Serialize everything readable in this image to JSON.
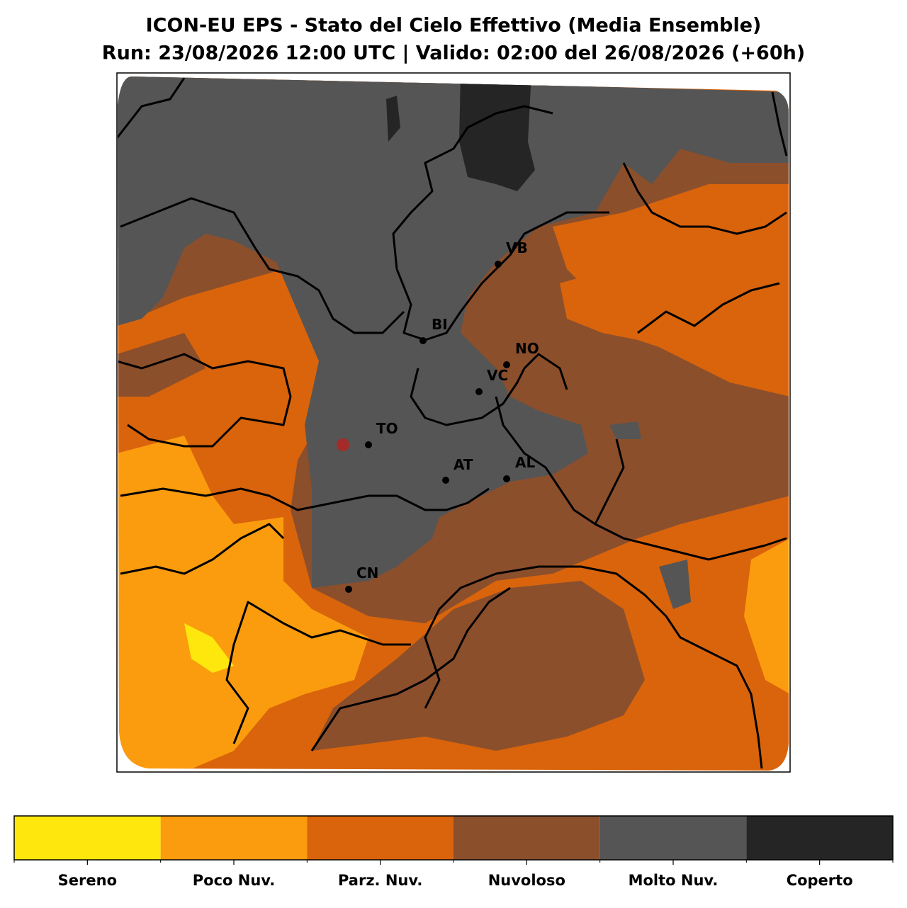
{
  "title": "ICON-EU EPS - Stato del Cielo Effettivo (Media Ensemble)",
  "subtitle": "Run: 23/08/2026 12:00 UTC | Valido: 02:00 del 26/08/2026 (+60h)",
  "cities": [
    "VB",
    "BI",
    "NO",
    "VC",
    "TO",
    "AT",
    "AL",
    "CN"
  ],
  "legend": {
    "categories": [
      {
        "label": "Sereno",
        "color": "#fde70c"
      },
      {
        "label": "Poco Nuv.",
        "color": "#fb9c0e"
      },
      {
        "label": "Parz. Nuv.",
        "color": "#d9640b"
      },
      {
        "label": "Nuvoloso",
        "color": "#8b4f2c"
      },
      {
        "label": "Molto Nuv.",
        "color": "#555555"
      },
      {
        "label": "Coperto",
        "color": "#252525"
      }
    ]
  }
}
